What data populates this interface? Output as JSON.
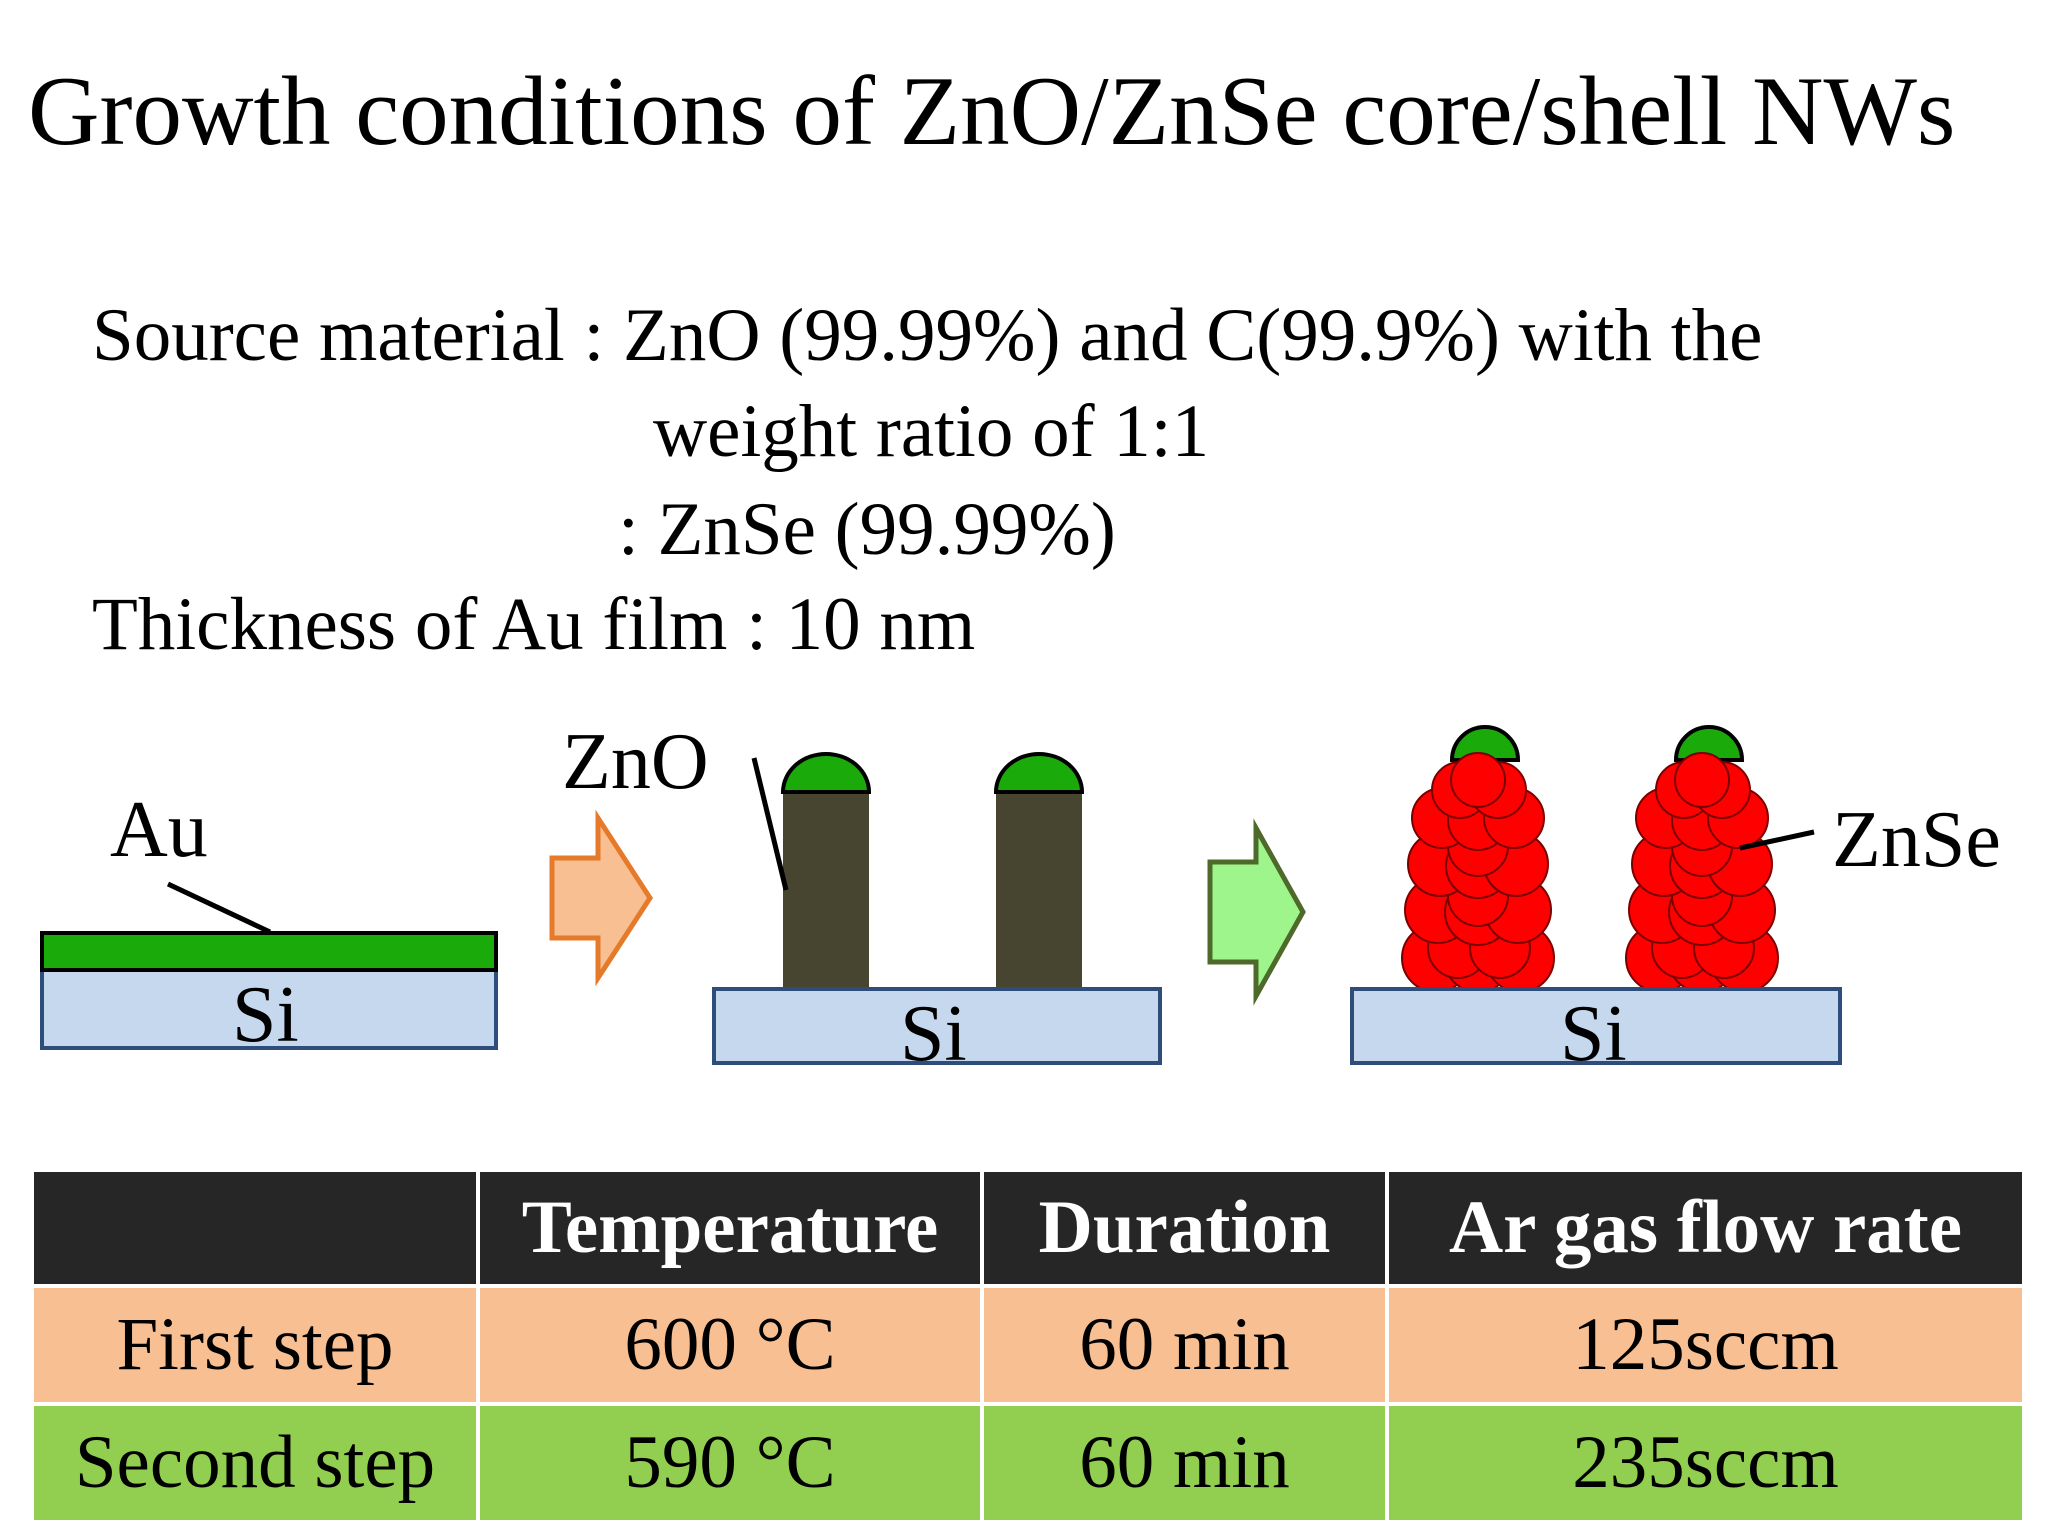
{
  "title": "Growth conditions of ZnO/ZnSe core/shell NWs",
  "info": {
    "source_line1": "Source material : ZnO (99.99%) and C(99.9%) with the",
    "source_line2": "weight ratio of 1:1",
    "source_line3": ":  ZnSe (99.99%)",
    "thickness": "Thickness of Au film : 10 nm"
  },
  "diagram": {
    "label_au": "Au",
    "label_zno": "ZnO",
    "label_znse": "ZnSe",
    "label_si": "Si",
    "colors": {
      "au_film": "#1aaa0a",
      "si_substrate": "#c6d8ee",
      "si_border": "#2e4d7a",
      "zno_wire": "#474530",
      "znse_shell": "#ff0000",
      "arrow1_fill": "#f8bf92",
      "arrow1_stroke": "#e57a2a",
      "arrow2_fill": "#9ef58c",
      "arrow2_stroke": "#4d6a2a"
    }
  },
  "table": {
    "headers": [
      "",
      "Temperature",
      "Duration",
      "Ar gas flow rate"
    ],
    "rows": [
      {
        "step": "First step",
        "temperature": "600 °C",
        "duration": "60 min",
        "flow": "125sccm"
      },
      {
        "step": "Second step",
        "temperature": "590 °C",
        "duration": "60 min",
        "flow": "235sccm"
      }
    ]
  }
}
